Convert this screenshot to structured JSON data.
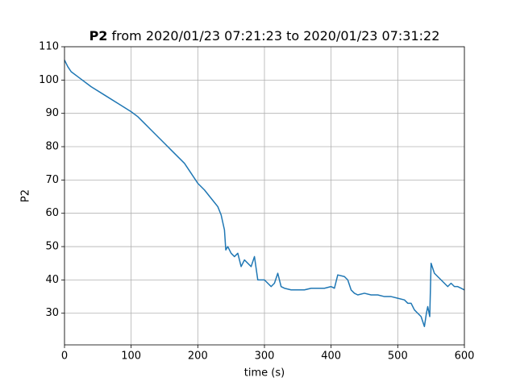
{
  "chart_data": {
    "type": "line",
    "title": [
      "P2",
      "from 2020/01/23 07:21:23 to 2020/01/23 07:31:22"
    ],
    "x_label": "time (s)",
    "y_label": "P2",
    "x": [
      0,
      5,
      10,
      20,
      40,
      60,
      80,
      100,
      110,
      120,
      130,
      140,
      150,
      160,
      170,
      180,
      190,
      200,
      210,
      220,
      230,
      235,
      240,
      242,
      245,
      250,
      255,
      260,
      265,
      270,
      280,
      285,
      290,
      300,
      310,
      315,
      320,
      325,
      330,
      340,
      350,
      360,
      370,
      380,
      390,
      400,
      405,
      410,
      420,
      425,
      430,
      435,
      440,
      450,
      460,
      470,
      480,
      490,
      500,
      510,
      515,
      520,
      525,
      530,
      535,
      540,
      543,
      545,
      548,
      550,
      555,
      560,
      565,
      570,
      575,
      580,
      585,
      590,
      595,
      600
    ],
    "values": [
      106,
      104,
      102.5,
      101,
      98,
      95.5,
      93,
      90.5,
      89,
      87,
      85,
      83,
      81,
      79,
      77,
      75,
      72,
      69,
      67,
      64.5,
      62,
      59.5,
      55,
      49,
      50,
      48,
      47,
      48,
      44,
      46,
      44,
      47,
      40,
      40,
      38,
      39,
      42,
      38,
      37.5,
      37,
      37,
      37,
      37.5,
      37.5,
      37.5,
      38,
      37.5,
      41.5,
      41,
      40,
      37,
      36,
      35.5,
      36,
      35.5,
      35.5,
      35,
      35,
      34.5,
      34,
      33,
      33,
      31,
      30,
      29,
      26,
      30,
      32,
      29,
      45,
      42,
      41,
      40,
      39,
      38,
      39,
      38,
      38,
      37.5,
      37
    ],
    "color": "#1f77b4",
    "xlim": [
      0,
      600
    ],
    "xticks": [
      0,
      100,
      200,
      300,
      400,
      500,
      600
    ],
    "ylim": [
      20.5,
      110
    ],
    "yticks": [
      30,
      40,
      50,
      60,
      70,
      80,
      90,
      100,
      110
    ],
    "grid": true
  }
}
